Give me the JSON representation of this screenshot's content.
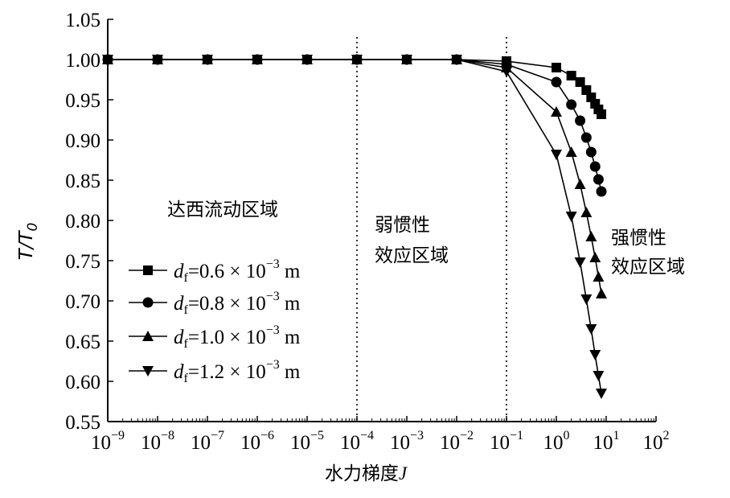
{
  "chart_data": {
    "type": "line",
    "title": "",
    "xlabel": "水力梯度",
    "xlabel_var": "J",
    "ylabel": "T/T",
    "ylabel_sub": "0",
    "x_scale": "log",
    "xlim": [
      1e-09,
      100
    ],
    "ylim": [
      0.55,
      1.05
    ],
    "x_ticks": [
      {
        "base": "10",
        "exp": "−9"
      },
      {
        "base": "10",
        "exp": "−8"
      },
      {
        "base": "10",
        "exp": "−7"
      },
      {
        "base": "10",
        "exp": "−6"
      },
      {
        "base": "10",
        "exp": "−5"
      },
      {
        "base": "10",
        "exp": "−4"
      },
      {
        "base": "10",
        "exp": "−3"
      },
      {
        "base": "10",
        "exp": "−2"
      },
      {
        "base": "10",
        "exp": "−1"
      },
      {
        "base": "10",
        "exp": "0"
      },
      {
        "base": "10",
        "exp": "1"
      },
      {
        "base": "10",
        "exp": "2"
      }
    ],
    "y_ticks": [
      "0.55",
      "0.60",
      "0.65",
      "0.70",
      "0.75",
      "0.80",
      "0.85",
      "0.90",
      "0.95",
      "1.00",
      "1.05"
    ],
    "y_tick_values": [
      0.55,
      0.6,
      0.65,
      0.7,
      0.75,
      0.8,
      0.85,
      0.9,
      0.95,
      1.0,
      1.05
    ],
    "grid": false,
    "legend_position": "left-bottom",
    "dividers": [
      0.0001,
      0.1
    ],
    "region_labels": [
      {
        "lines": [
          "达西流动区域"
        ]
      },
      {
        "lines": [
          "弱惯性",
          "效应区域"
        ]
      },
      {
        "lines": [
          "强惯性",
          "效应区域"
        ]
      }
    ],
    "series": [
      {
        "label_var": "d",
        "label_sub": "f",
        "label_value": "=0.6 × 10",
        "label_exp": "−3",
        "label_unit": "m",
        "marker": "square",
        "x": [
          1e-09,
          1e-08,
          1e-07,
          1e-06,
          1e-05,
          0.0001,
          0.001,
          0.01,
          0.1,
          1,
          2,
          3,
          4,
          5,
          6,
          7,
          8
        ],
        "y": [
          1.0,
          1.0,
          1.0,
          1.0,
          1.0,
          1.0,
          1.0,
          1.0,
          0.998,
          0.99,
          0.98,
          0.972,
          0.962,
          0.953,
          0.945,
          0.938,
          0.932
        ]
      },
      {
        "label_var": "d",
        "label_sub": "f",
        "label_value": "=0.8 × 10",
        "label_exp": "−3",
        "label_unit": "m",
        "marker": "circle",
        "x": [
          1e-09,
          1e-08,
          1e-07,
          1e-06,
          1e-05,
          0.0001,
          0.001,
          0.01,
          0.1,
          1,
          2,
          3,
          4,
          5,
          6,
          7,
          8
        ],
        "y": [
          1.0,
          1.0,
          1.0,
          1.0,
          1.0,
          1.0,
          1.0,
          1.0,
          0.994,
          0.972,
          0.944,
          0.924,
          0.903,
          0.885,
          0.867,
          0.851,
          0.836
        ]
      },
      {
        "label_var": "d",
        "label_sub": "f",
        "label_value": "=1.0 × 10",
        "label_exp": "−3",
        "label_unit": "m",
        "marker": "triangle-up",
        "x": [
          1e-09,
          1e-08,
          1e-07,
          1e-06,
          1e-05,
          0.0001,
          0.001,
          0.01,
          0.1,
          1,
          2,
          3,
          4,
          5,
          6,
          7,
          8
        ],
        "y": [
          1.0,
          1.0,
          1.0,
          1.0,
          1.0,
          1.0,
          1.0,
          1.0,
          0.99,
          0.935,
          0.885,
          0.845,
          0.81,
          0.78,
          0.754,
          0.73,
          0.709
        ]
      },
      {
        "label_var": "d",
        "label_sub": "f",
        "label_value": "=1.2 × 10",
        "label_exp": "−3",
        "label_unit": "m",
        "marker": "triangle-down",
        "x": [
          1e-09,
          1e-08,
          1e-07,
          1e-06,
          1e-05,
          0.0001,
          0.001,
          0.01,
          0.1,
          1,
          2,
          3,
          4,
          5,
          6,
          7,
          8
        ],
        "y": [
          1.0,
          1.0,
          1.0,
          1.0,
          1.0,
          1.0,
          1.0,
          1.0,
          0.985,
          0.882,
          0.805,
          0.748,
          0.702,
          0.665,
          0.633,
          0.607,
          0.585
        ]
      }
    ]
  }
}
